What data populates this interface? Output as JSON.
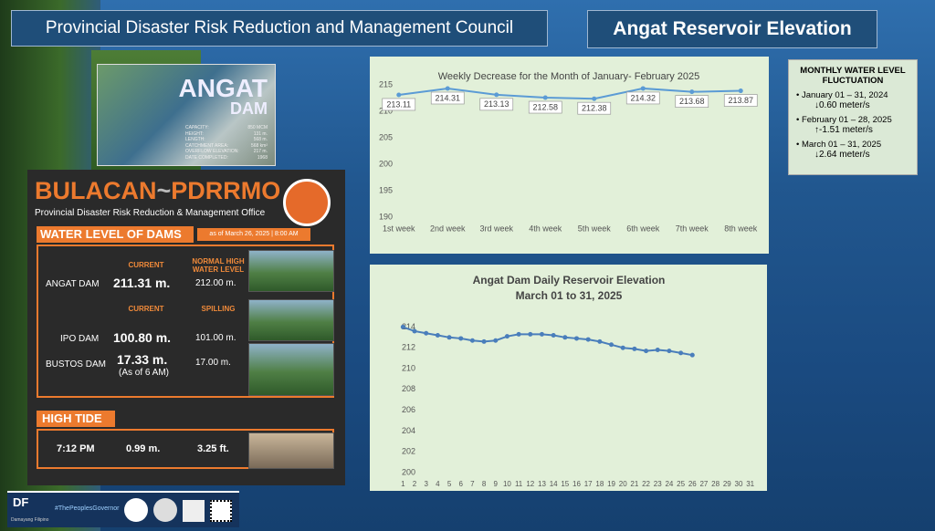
{
  "header": {
    "council": "Provincial Disaster Risk Reduction and Management Council",
    "title": "Angat Reservoir Elevation"
  },
  "angat_poster": {
    "title": "ANGAT",
    "subtitle": "DAM",
    "specs": [
      {
        "label": "CAPACITY:",
        "value": "850 MCM"
      },
      {
        "label": "HEIGHT:",
        "value": "131 m."
      },
      {
        "label": "LENGTH:",
        "value": "568 m."
      },
      {
        "label": "CATCHMENT AREA:",
        "value": "568 km²"
      },
      {
        "label": "OVERFLOW ELEVATION:",
        "value": "217 m."
      },
      {
        "label": "DATE COMPLETED:",
        "value": "1968"
      }
    ]
  },
  "bulletin": {
    "brand_left": "BULACAN",
    "brand_right": "PDRRMO",
    "office": "Provincial Disaster Risk Reduction & Management Office",
    "section": "WATER LEVEL OF DAMS",
    "as_of": "as of March 26, 2025 | 8:00 AM",
    "angat": {
      "current_header": "CURRENT",
      "limit_header": "NORMAL HIGH WATER LEVEL",
      "name": "ANGAT DAM",
      "current": "211.31 m.",
      "limit": "212.00 m."
    },
    "ipo_header": {
      "current": "CURRENT",
      "limit": "SPILLING"
    },
    "ipo": {
      "name": "IPO DAM",
      "current": "100.80 m.",
      "limit": "101.00 m."
    },
    "bustos": {
      "name": "BUSTOS DAM",
      "current": "17.33 m.",
      "note": "(As of 6 AM)",
      "limit": "17.00 m."
    },
    "tide": {
      "title": "HIGH TIDE",
      "time": "7:12 PM",
      "meters": "0.99 m.",
      "feet": "3.25 ft."
    }
  },
  "fluctuation": {
    "title": "MONTHLY WATER LEVEL FLUCTUATION",
    "items": [
      {
        "period": "January 01 – 31, 2024",
        "change": "↓0.60 meter/s"
      },
      {
        "period": "February 01 – 28, 2025",
        "change": "↑-1.51 meter/s"
      },
      {
        "period": "March 01 – 31, 2025",
        "change": "↓2.64 meter/s"
      }
    ]
  },
  "footer": {
    "logo": "DF",
    "brand": "Damayang Filipino",
    "slogan": "#ThePeoplesGovernor"
  },
  "chart_data": [
    {
      "type": "line",
      "title": "Weekly Decrease for the Month of  January- February 2025",
      "categories": [
        "1st week",
        "2nd week",
        "3rd week",
        "4th week",
        "5th week",
        "6th week",
        "7th week",
        "8th week"
      ],
      "series": [
        {
          "name": "Elevation",
          "color": "#5b9bd5",
          "values": [
            213.11,
            214.31,
            213.13,
            212.58,
            212.38,
            214.32,
            213.68,
            213.87
          ]
        }
      ],
      "ylim": [
        190,
        215
      ],
      "yticks": [
        190,
        195,
        200,
        205,
        210,
        215
      ],
      "grid": false,
      "data_labels": true,
      "legend": false
    },
    {
      "type": "line",
      "title": "Angat Dam Daily Reservoir Elevation",
      "subtitle": "March 01 to 31, 2025",
      "categories": [
        1,
        2,
        3,
        4,
        5,
        6,
        7,
        8,
        9,
        10,
        11,
        12,
        13,
        14,
        15,
        16,
        17,
        18,
        19,
        20,
        21,
        22,
        23,
        24,
        25,
        26,
        27,
        28,
        29,
        30,
        31
      ],
      "series": [
        {
          "name": "Elevation",
          "color": "#4a7ebb",
          "values": [
            214.0,
            213.6,
            213.4,
            213.2,
            213.0,
            212.9,
            212.7,
            212.6,
            212.7,
            213.1,
            213.3,
            213.3,
            213.3,
            213.2,
            213.0,
            212.9,
            212.8,
            212.6,
            212.3,
            212.0,
            211.9,
            211.7,
            211.8,
            211.7,
            211.5,
            211.3,
            null,
            null,
            null,
            null,
            null
          ]
        }
      ],
      "ylim": [
        200,
        215
      ],
      "yticks": [
        200,
        202,
        204,
        206,
        208,
        210,
        212,
        214
      ],
      "grid": false,
      "data_labels": false,
      "legend": false
    }
  ]
}
